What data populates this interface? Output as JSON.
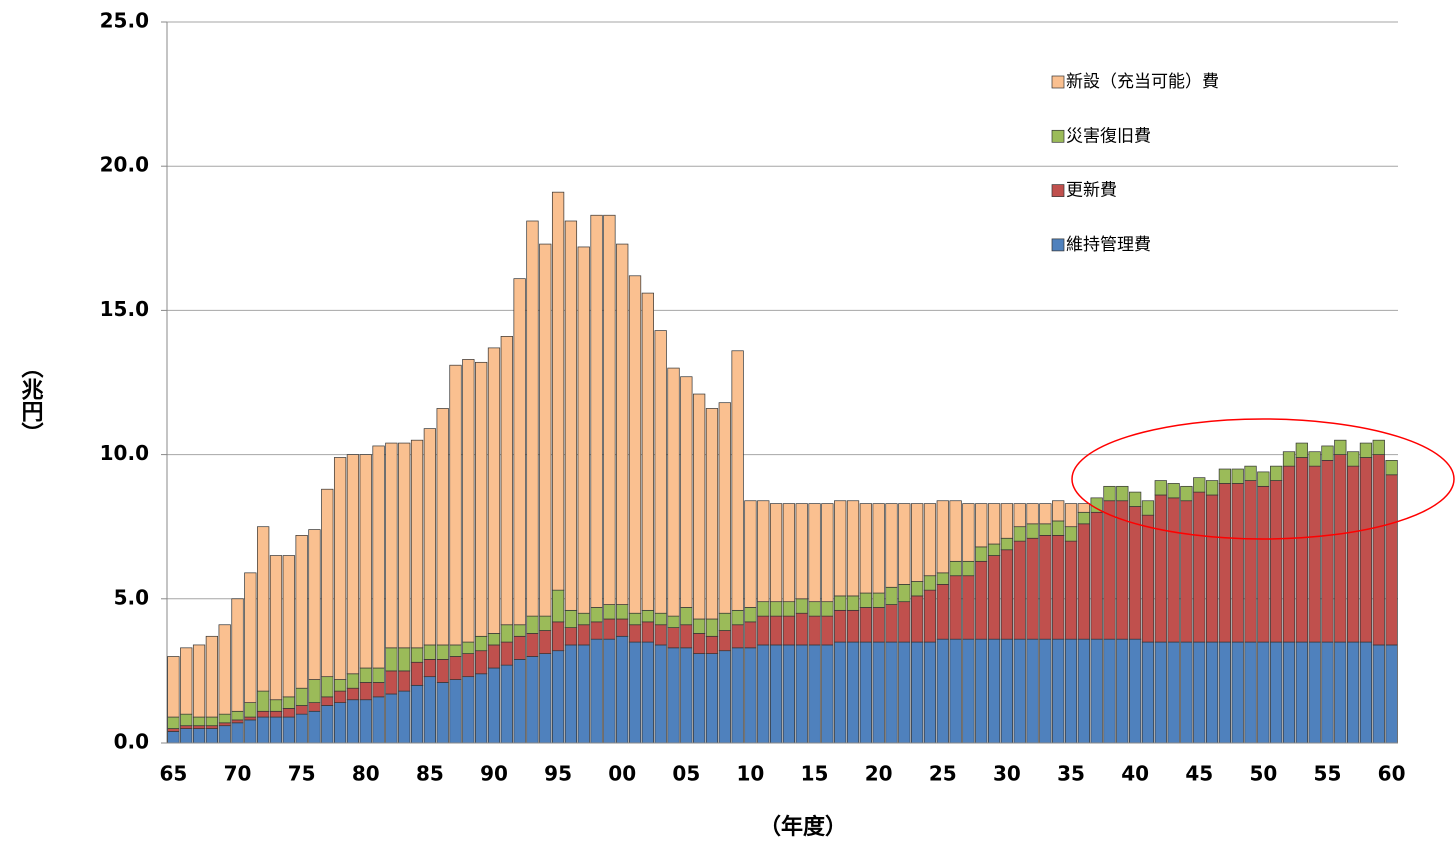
{
  "chart_data": {
    "type": "stacked_bar",
    "x_label": "（年度）",
    "y_label": "（兆円）",
    "categories": [
      "65",
      null,
      null,
      null,
      null,
      "70",
      null,
      null,
      null,
      null,
      "75",
      null,
      null,
      null,
      null,
      "80",
      null,
      null,
      null,
      null,
      "85",
      null,
      null,
      null,
      null,
      "90",
      null,
      null,
      null,
      null,
      "95",
      null,
      null,
      null,
      null,
      "00",
      null,
      null,
      null,
      null,
      "05",
      null,
      null,
      null,
      null,
      "10",
      null,
      null,
      null,
      null,
      "15",
      null,
      null,
      null,
      null,
      "20",
      null,
      null,
      null,
      null,
      "25",
      null,
      null,
      null,
      null,
      "30",
      null,
      null,
      null,
      null,
      "35",
      null,
      null,
      null,
      null,
      "40",
      null,
      null,
      null,
      null,
      "45",
      null,
      null,
      null,
      null,
      "50",
      null,
      null,
      null,
      null,
      "55",
      null,
      null,
      null,
      null,
      "60"
    ],
    "series": [
      {
        "name": "維持管理費",
        "color": "#4f81bd",
        "values": [
          0.4,
          0.5,
          0.5,
          0.5,
          0.6,
          0.7,
          0.8,
          0.9,
          0.9,
          0.9,
          1.0,
          1.1,
          1.3,
          1.4,
          1.5,
          1.5,
          1.6,
          1.7,
          1.8,
          2.0,
          2.3,
          2.1,
          2.2,
          2.3,
          2.4,
          2.6,
          2.7,
          2.9,
          3.0,
          3.1,
          3.2,
          3.4,
          3.4,
          3.6,
          3.6,
          3.7,
          3.5,
          3.5,
          3.4,
          3.3,
          3.3,
          3.1,
          3.1,
          3.2,
          3.3,
          3.3,
          3.4,
          3.4,
          3.4,
          3.4,
          3.4,
          3.4,
          3.5,
          3.5,
          3.5,
          3.5,
          3.5,
          3.5,
          3.5,
          3.5,
          3.6,
          3.6,
          3.6,
          3.6,
          3.6,
          3.6,
          3.6,
          3.6,
          3.6,
          3.6,
          3.6,
          3.6,
          3.6,
          3.6,
          3.6,
          3.6,
          3.5,
          3.5,
          3.5,
          3.5,
          3.5,
          3.5,
          3.5,
          3.5,
          3.5,
          3.5,
          3.5,
          3.5,
          3.5,
          3.5,
          3.5,
          3.5,
          3.5,
          3.5,
          3.4,
          3.4
        ]
      },
      {
        "name": "更新費",
        "color": "#c0504d",
        "values": [
          0.1,
          0.1,
          0.1,
          0.1,
          0.1,
          0.1,
          0.1,
          0.2,
          0.2,
          0.3,
          0.3,
          0.3,
          0.3,
          0.4,
          0.4,
          0.6,
          0.5,
          0.8,
          0.7,
          0.8,
          0.6,
          0.8,
          0.8,
          0.8,
          0.8,
          0.8,
          0.8,
          0.8,
          0.8,
          0.8,
          1.0,
          0.6,
          0.7,
          0.6,
          0.7,
          0.6,
          0.6,
          0.7,
          0.7,
          0.7,
          0.8,
          0.7,
          0.6,
          0.7,
          0.8,
          0.9,
          1.0,
          1.0,
          1.0,
          1.1,
          1.0,
          1.0,
          1.1,
          1.1,
          1.2,
          1.2,
          1.3,
          1.4,
          1.6,
          1.8,
          1.9,
          2.2,
          2.2,
          2.7,
          2.9,
          3.1,
          3.4,
          3.5,
          3.6,
          3.6,
          3.4,
          4.0,
          4.4,
          4.8,
          4.8,
          4.6,
          4.4,
          5.1,
          5.0,
          4.9,
          5.2,
          5.1,
          5.5,
          5.5,
          5.6,
          5.4,
          5.6,
          6.1,
          6.4,
          6.1,
          6.3,
          6.5,
          6.1,
          6.4,
          6.6,
          5.9
        ]
      },
      {
        "name": "災害復旧費",
        "color": "#9bbb59",
        "values": [
          0.4,
          0.4,
          0.3,
          0.3,
          0.3,
          0.3,
          0.5,
          0.7,
          0.4,
          0.4,
          0.6,
          0.8,
          0.7,
          0.4,
          0.5,
          0.5,
          0.5,
          0.8,
          0.8,
          0.5,
          0.5,
          0.5,
          0.4,
          0.4,
          0.5,
          0.4,
          0.6,
          0.4,
          0.6,
          0.5,
          1.1,
          0.6,
          0.4,
          0.5,
          0.5,
          0.5,
          0.4,
          0.4,
          0.4,
          0.4,
          0.6,
          0.5,
          0.6,
          0.6,
          0.5,
          0.5,
          0.5,
          0.5,
          0.5,
          0.5,
          0.5,
          0.5,
          0.5,
          0.5,
          0.5,
          0.5,
          0.6,
          0.6,
          0.5,
          0.5,
          0.4,
          0.5,
          0.5,
          0.5,
          0.4,
          0.4,
          0.5,
          0.5,
          0.4,
          0.5,
          0.5,
          0.4,
          0.5,
          0.5,
          0.5,
          0.5,
          0.5,
          0.5,
          0.5,
          0.5,
          0.5,
          0.5,
          0.5,
          0.5,
          0.5,
          0.5,
          0.5,
          0.5,
          0.5,
          0.5,
          0.5,
          0.5,
          0.5,
          0.5,
          0.5,
          0.5
        ]
      },
      {
        "name": "新設（充当可能）費",
        "color": "#fac090",
        "values": [
          2.1,
          2.3,
          2.5,
          2.8,
          3.1,
          3.9,
          4.5,
          5.7,
          5.0,
          4.9,
          5.3,
          5.2,
          6.5,
          7.7,
          7.6,
          7.4,
          7.7,
          7.1,
          7.1,
          7.2,
          7.5,
          8.2,
          9.7,
          9.8,
          9.5,
          9.9,
          10.0,
          12.0,
          13.7,
          12.9,
          13.8,
          13.5,
          12.7,
          13.6,
          13.5,
          12.5,
          11.7,
          11.0,
          9.8,
          8.6,
          8.0,
          7.8,
          7.3,
          7.3,
          9.0,
          3.7,
          3.5,
          3.4,
          3.4,
          3.3,
          3.4,
          3.4,
          3.3,
          3.3,
          3.1,
          3.1,
          2.9,
          2.8,
          2.7,
          2.5,
          2.5,
          2.1,
          2.0,
          1.5,
          1.4,
          1.2,
          0.8,
          0.7,
          0.7,
          0.7,
          0.8,
          0.3,
          0,
          0,
          0,
          0,
          0,
          0,
          0,
          0,
          0,
          0,
          0,
          0,
          0,
          0,
          0,
          0,
          0,
          0,
          0,
          0,
          0,
          0,
          0,
          0
        ]
      }
    ],
    "ylim": [
      0,
      25
    ],
    "yticks": [
      {
        "value": 0,
        "label": "0.0"
      },
      {
        "value": 5,
        "label": "5.0"
      },
      {
        "value": 10,
        "label": "10.0"
      },
      {
        "value": 15,
        "label": "15.0"
      },
      {
        "value": 20,
        "label": "20.0"
      },
      {
        "value": 25,
        "label": "25.0"
      }
    ],
    "grid": true,
    "legend": "upper right"
  }
}
